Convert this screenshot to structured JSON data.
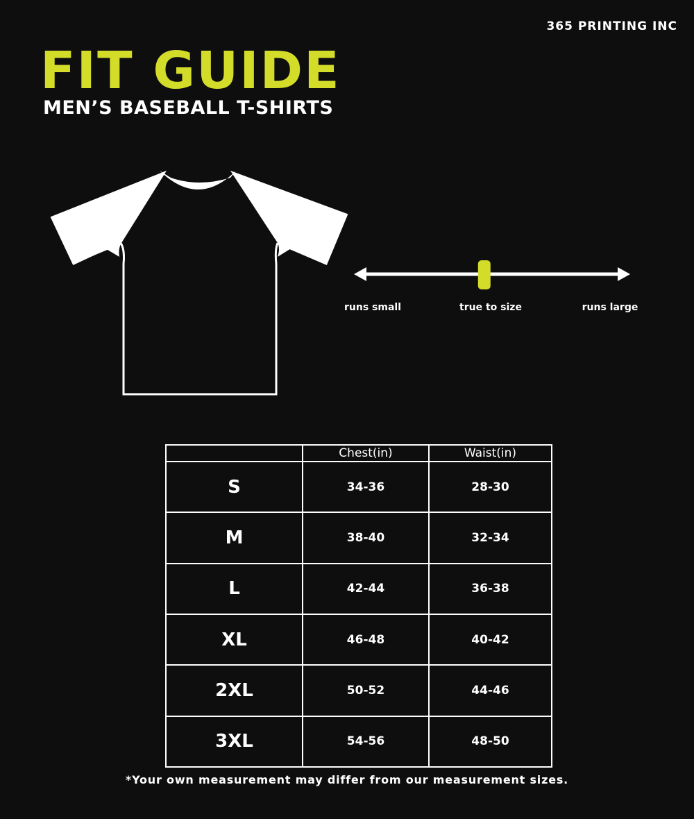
{
  "brand": "365 PRINTING INC",
  "title": "FIT GUIDE",
  "subtitle": "MEN’S BASEBALL T-SHIRTS",
  "colors": {
    "accent": "#d4dc2a",
    "background": "#0e0e0e",
    "text": "#ffffff"
  },
  "fit_scale": {
    "labels": [
      "runs small",
      "true to size",
      "runs large"
    ],
    "marker_position": 0.47,
    "selected": "true to size"
  },
  "table": {
    "headers": [
      "",
      "Chest(in)",
      "Waist(in)"
    ],
    "rows": [
      [
        "S",
        "34-36",
        "28-30"
      ],
      [
        "M",
        "38-40",
        "32-34"
      ],
      [
        "L",
        "42-44",
        "36-38"
      ],
      [
        "XL",
        "46-48",
        "40-42"
      ],
      [
        "2XL",
        "50-52",
        "44-46"
      ],
      [
        "3XL",
        "54-56",
        "48-50"
      ]
    ]
  },
  "note": "*Your own measurement may differ from our measurement sizes."
}
